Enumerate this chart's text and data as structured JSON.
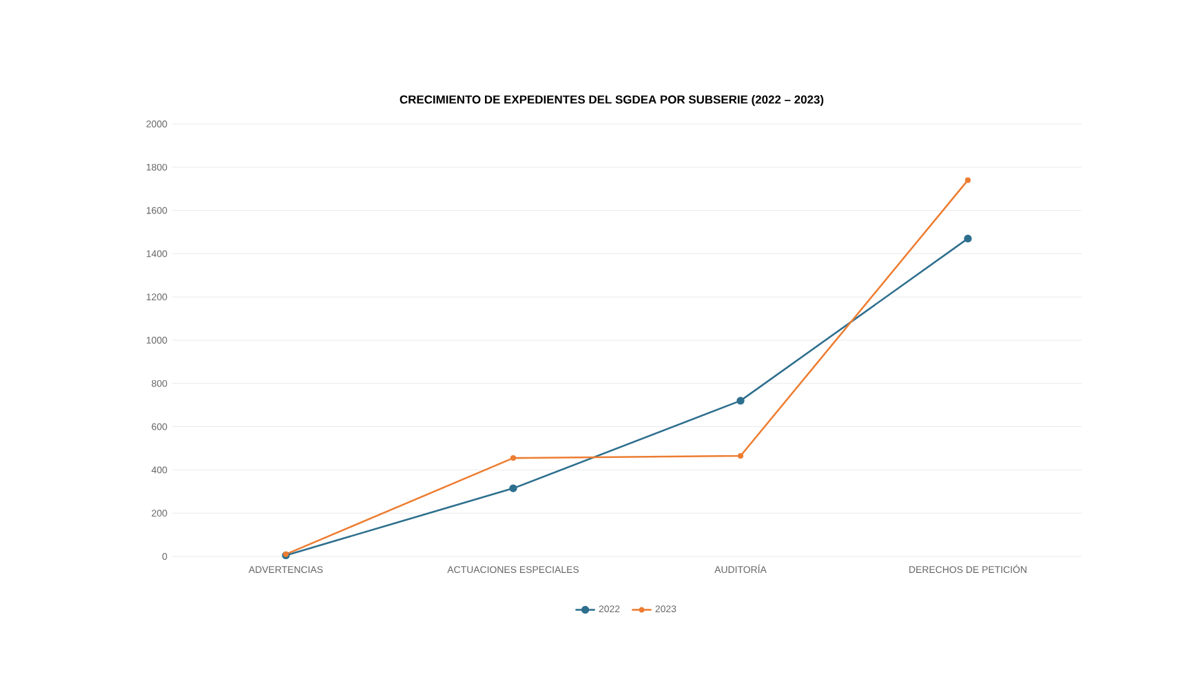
{
  "chart_data": {
    "type": "line",
    "title": "CRECIMIENTO DE EXPEDIENTES DEL SGDEA POR SUBSERIE (2022 – 2023)",
    "categories": [
      "ADVERTENCIAS",
      "ACTUACIONES ESPECIALES",
      "AUDITORÍA",
      "DERECHOS DE PETICIÓN"
    ],
    "series": [
      {
        "name": "2022",
        "color": "#2e6f8e",
        "values": [
          5,
          315,
          720,
          1470
        ]
      },
      {
        "name": "2023",
        "color": "#ed7d31",
        "values": [
          10,
          455,
          465,
          1740
        ]
      }
    ],
    "ylim": [
      0,
      2000
    ],
    "yticks": [
      0,
      200,
      400,
      600,
      800,
      1000,
      1200,
      1400,
      1600,
      1800,
      2000
    ],
    "grid": "y",
    "legend": "bottom",
    "marker": "circle",
    "line_style": "solid"
  }
}
